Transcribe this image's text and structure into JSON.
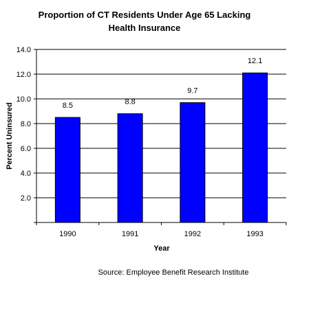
{
  "chart_data": {
    "type": "bar",
    "title_lines": [
      "Proportion of CT Residents Under Age 65 Lacking",
      "Health Insurance"
    ],
    "categories": [
      "1990",
      "1991",
      "1992",
      "1993"
    ],
    "values": [
      8.5,
      8.8,
      9.7,
      12.1
    ],
    "data_labels": [
      "8.5",
      "8.8",
      "9.7",
      "12.1"
    ],
    "xlabel": "Year",
    "ylabel": "Percent Uninsured",
    "ylim": [
      0,
      14
    ],
    "yticks": [
      0,
      2,
      4,
      6,
      8,
      10,
      12,
      14
    ],
    "ytick_labels": [
      "",
      "2.0",
      "4.0",
      "6.0",
      "8.0",
      "10.0",
      "12.0",
      "14.0"
    ],
    "grid": true,
    "legend": "none",
    "bar_color": "#0000ff",
    "source": "Source: Employee Benefit Research Institute"
  }
}
